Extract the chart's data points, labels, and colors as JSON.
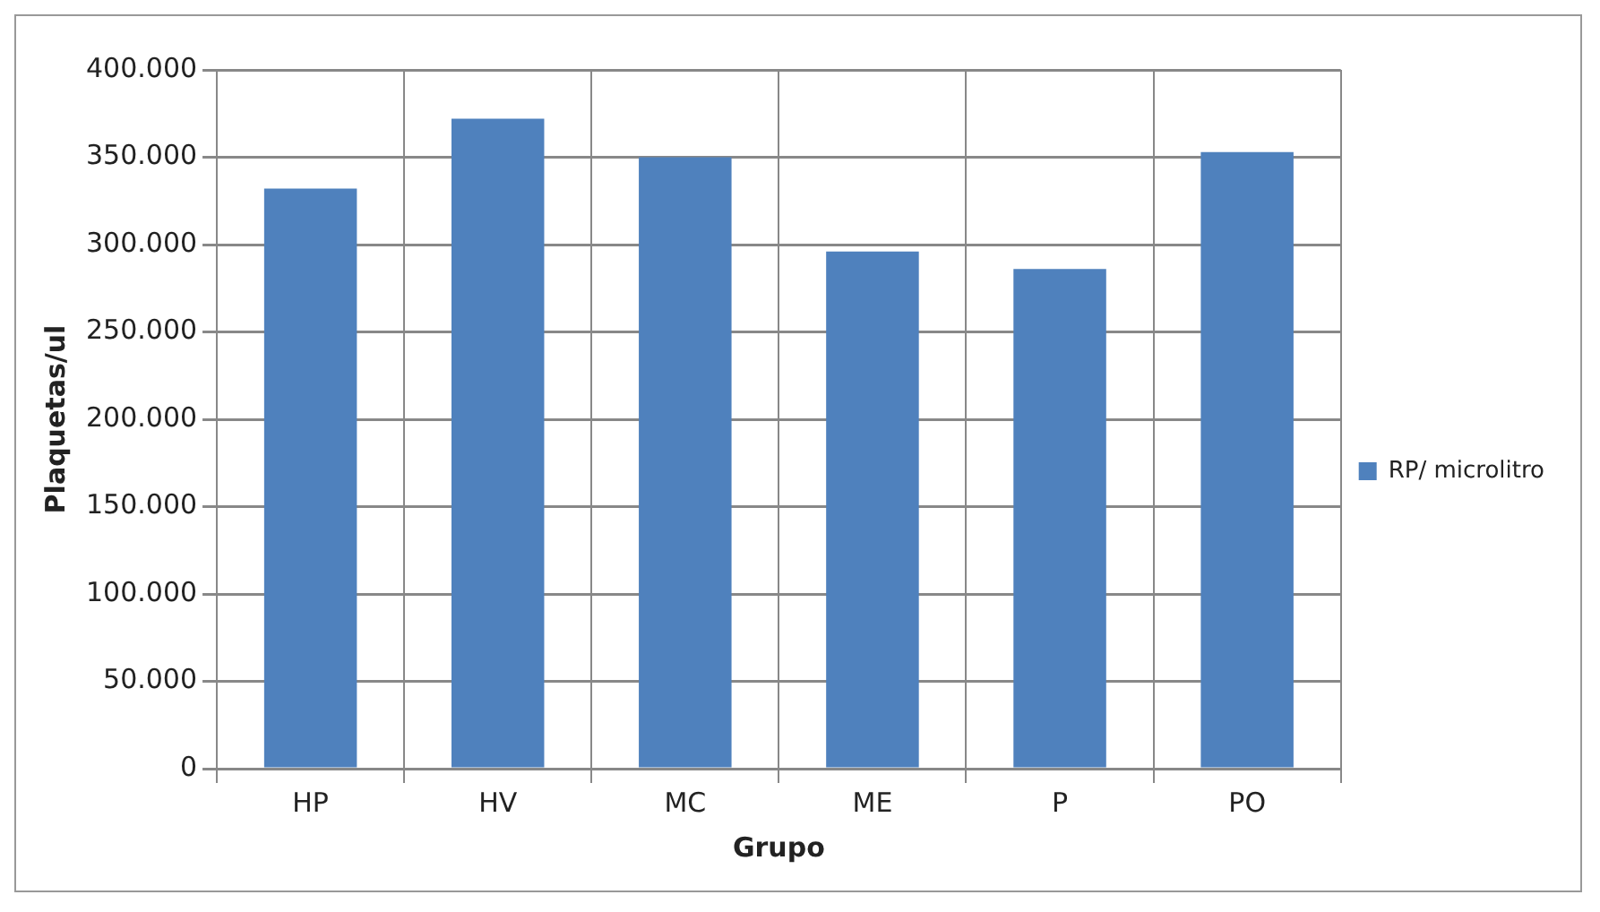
{
  "chart_data": {
    "type": "bar",
    "xlabel": "Grupo",
    "ylabel": "Plaquetas/ul",
    "categories": [
      "HP",
      "HV",
      "MC",
      "ME",
      "P",
      "PO"
    ],
    "series": [
      {
        "name": "RP/ microlitro",
        "color": "#4f81bd",
        "values": [
          332000,
          372000,
          350000,
          296000,
          286000,
          353000
        ]
      }
    ],
    "ylim": [
      0,
      400000
    ],
    "yticks": [
      {
        "value": 0,
        "label": "0"
      },
      {
        "value": 50000,
        "label": "50.000"
      },
      {
        "value": 100000,
        "label": "100.000"
      },
      {
        "value": 150000,
        "label": "150.000"
      },
      {
        "value": 200000,
        "label": "200.000"
      },
      {
        "value": 250000,
        "label": "250.000"
      },
      {
        "value": 300000,
        "label": "300.000"
      },
      {
        "value": 350000,
        "label": "350.000"
      },
      {
        "value": 400000,
        "label": "400.000"
      }
    ],
    "grid": true,
    "legend": "right"
  }
}
